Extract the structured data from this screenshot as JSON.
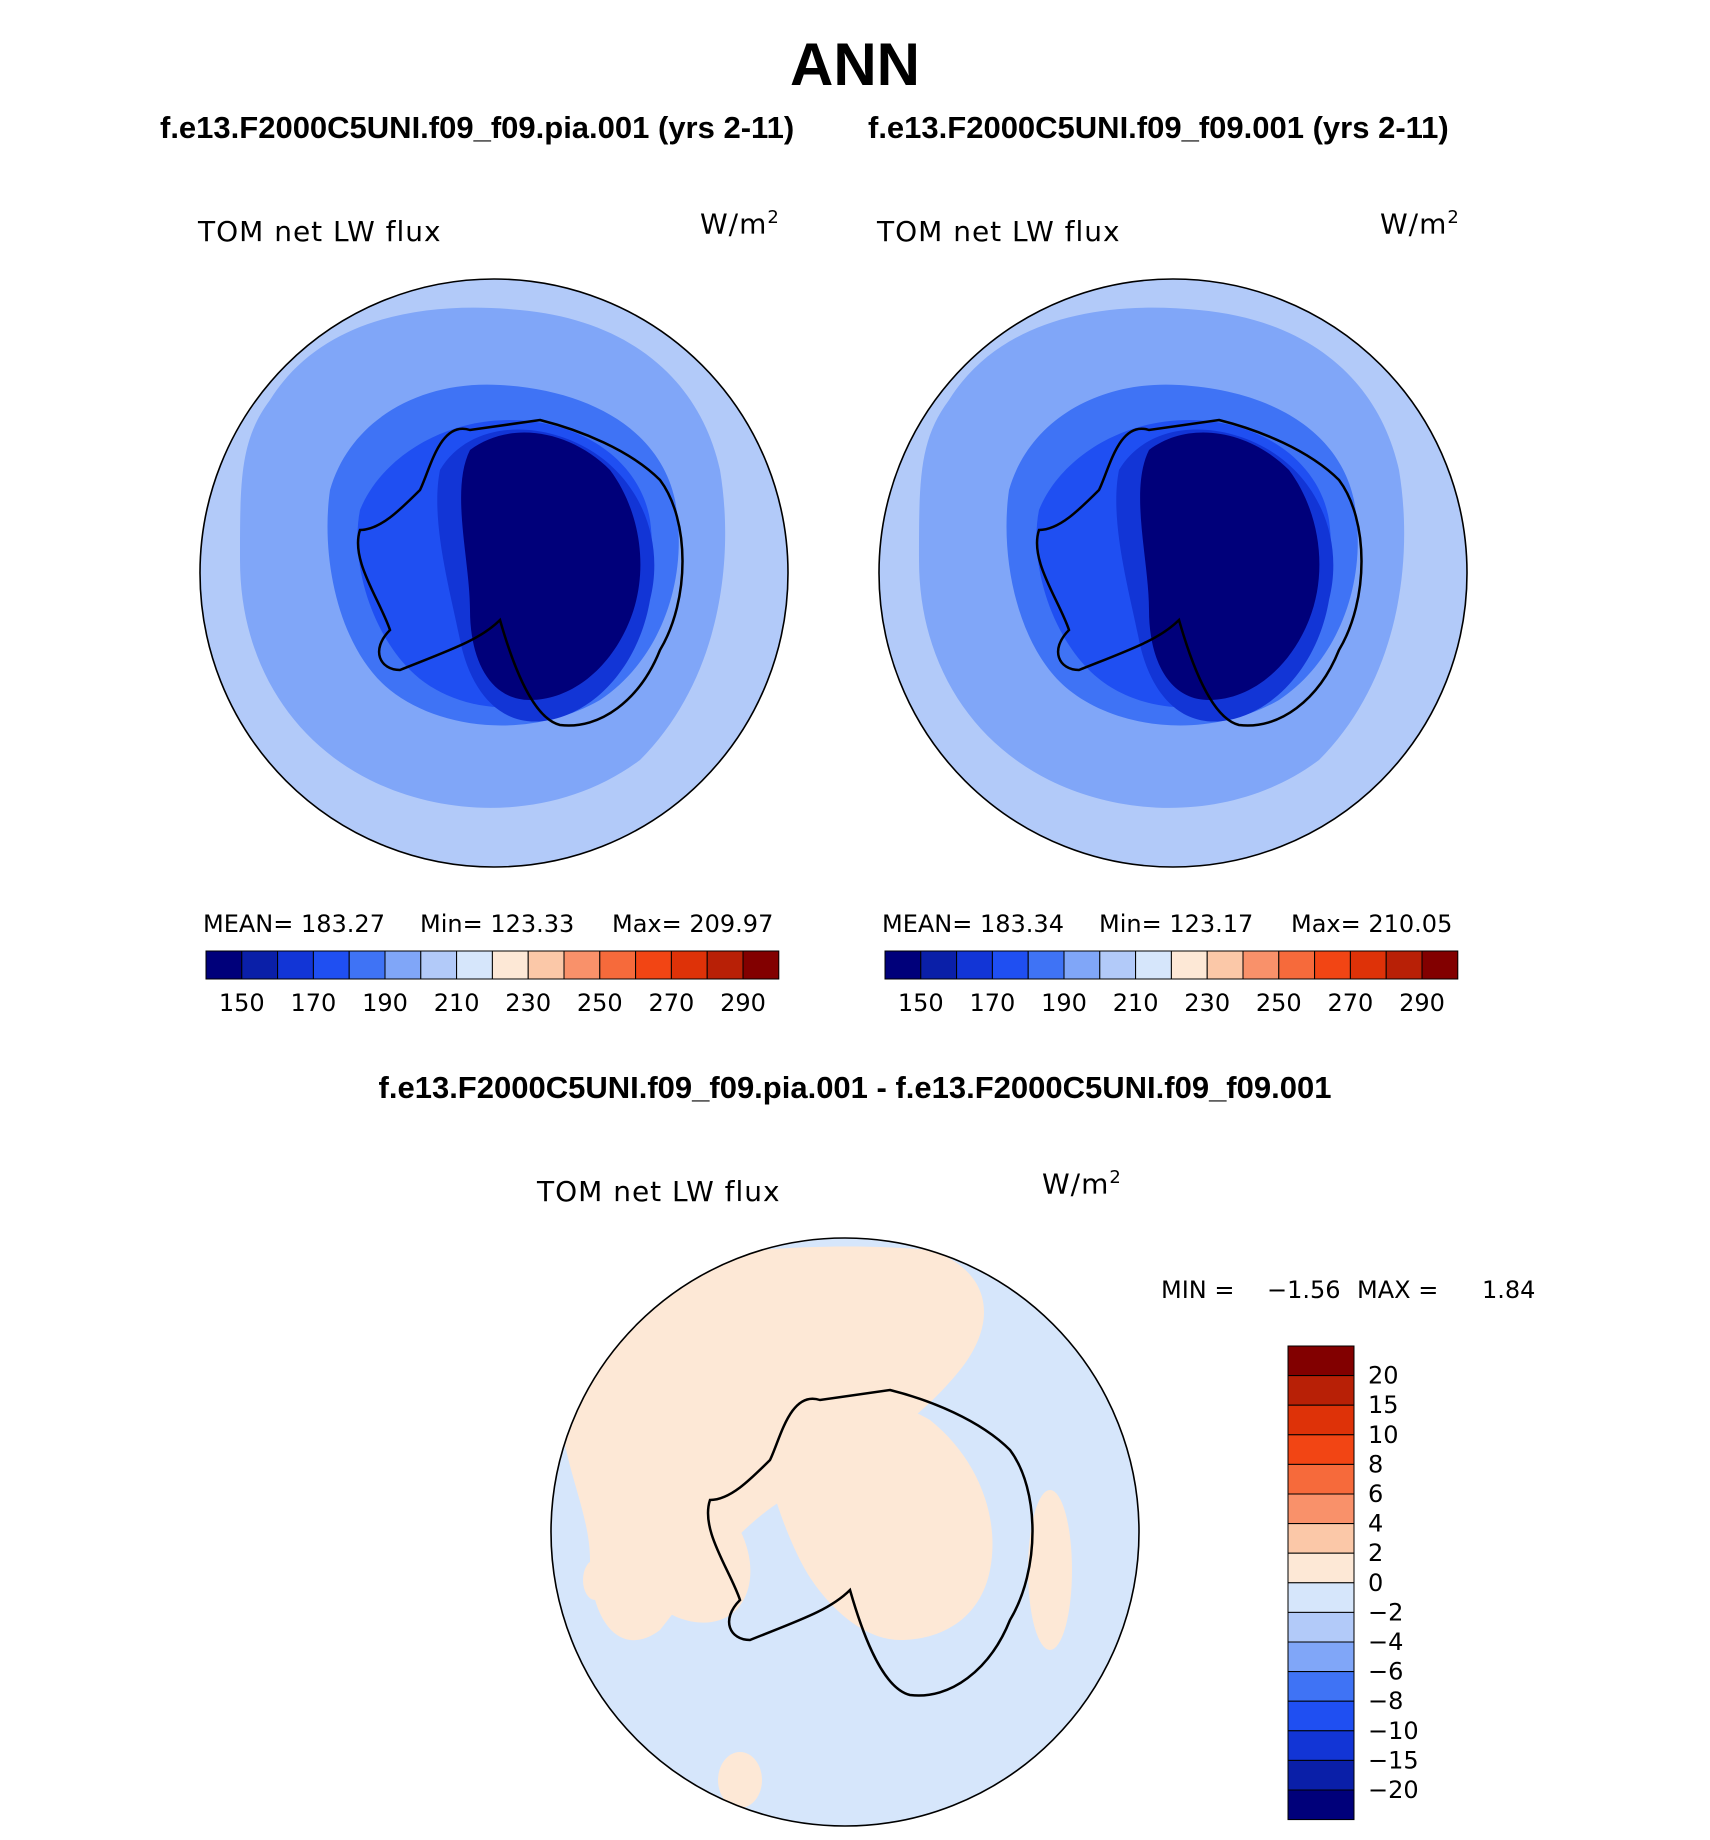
{
  "title": "ANN",
  "panels": [
    {
      "case": "f.e13.F2000C5UNI.f09_f09.pia.001 (yrs 2-11)",
      "variable": "TOM net LW flux",
      "units_base": "W/m",
      "units_exp": "2",
      "stats": {
        "mean": "MEAN=  183.27",
        "min": "Min=  123.33",
        "max": "Max=  209.97"
      }
    },
    {
      "case": "f.e13.F2000C5UNI.f09_f09.001 (yrs 2-11)",
      "variable": "TOM net LW flux",
      "units_base": "W/m",
      "units_exp": "2",
      "stats": {
        "mean": "MEAN=  183.34",
        "min": "Min=  123.17",
        "max": "Max=  210.05"
      }
    }
  ],
  "colorbar_top": {
    "colors": [
      "#00007a",
      "#0a1fa8",
      "#1235d6",
      "#1f4ff2",
      "#3f73f5",
      "#80a6f8",
      "#b2caf9",
      "#d6e6fb",
      "#fde8d6",
      "#fbc8a8",
      "#f9916a",
      "#f66a3b",
      "#f24514",
      "#de3208",
      "#b82006",
      "#820000"
    ],
    "tick_labels": [
      "150",
      "170",
      "190",
      "210",
      "230",
      "250",
      "270",
      "290"
    ]
  },
  "difference": {
    "title": "f.e13.F2000C5UNI.f09_f09.pia.001 - f.e13.F2000C5UNI.f09_f09.001",
    "variable": "TOM net LW flux",
    "units_base": "W/m",
    "units_exp": "2",
    "min_label": "MIN =",
    "min_value": "−1.56",
    "max_label": "MAX =",
    "max_value": "1.84",
    "colorbar": {
      "colors": [
        "#820000",
        "#b82006",
        "#de3208",
        "#f24514",
        "#f66a3b",
        "#f9916a",
        "#fbc8a8",
        "#fde8d6",
        "#d6e6fb",
        "#b2caf9",
        "#80a6f8",
        "#3f73f5",
        "#1f4ff2",
        "#1235d6",
        "#0a1fa8",
        "#00007a"
      ],
      "tick_labels": [
        "20",
        "15",
        "10",
        "8",
        "6",
        "4",
        "2",
        "0",
        "−2",
        "−4",
        "−6",
        "−8",
        "−10",
        "−15",
        "−20"
      ]
    }
  }
}
